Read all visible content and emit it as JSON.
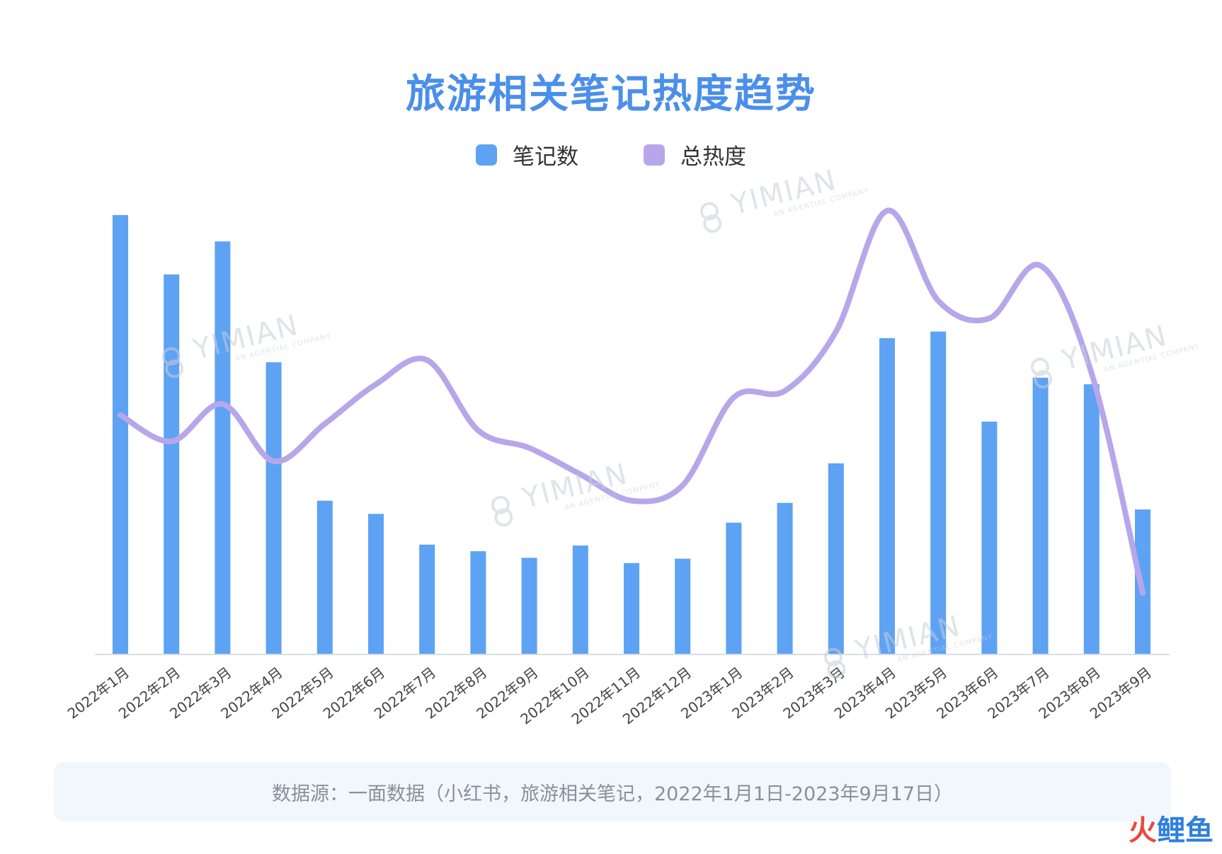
{
  "chart_data": {
    "type": "bar",
    "title": "旅游相关笔记热度趋势",
    "categories": [
      "2022年1月",
      "2022年2月",
      "2022年3月",
      "2022年4月",
      "2022年5月",
      "2022年6月",
      "2022年7月",
      "2022年8月",
      "2022年9月",
      "2022年10月",
      "2022年11月",
      "2022年12月",
      "2023年1月",
      "2023年2月",
      "2023年3月",
      "2023年4月",
      "2023年5月",
      "2023年6月",
      "2023年7月",
      "2023年8月",
      "2023年9月"
    ],
    "series": [
      {
        "name": "笔记数",
        "type": "bar",
        "color": "#5ea2f4",
        "values": [
          100,
          86.5,
          94,
          66.5,
          35,
          32,
          25,
          23.5,
          22,
          24.8,
          20.8,
          21.8,
          30,
          34.5,
          43.5,
          72,
          73.5,
          53,
          63,
          61.5,
          33
        ]
      },
      {
        "name": "总热度",
        "type": "line",
        "color": "#b8a6ea",
        "values": [
          54.5,
          48.5,
          57,
          44,
          52.5,
          61.5,
          67,
          51,
          47,
          41,
          35,
          38.5,
          58.5,
          60,
          73.5,
          101,
          80.5,
          76.5,
          88.5,
          64,
          14
        ]
      }
    ],
    "xlabel": "",
    "ylabel": "",
    "ylim": [
      0,
      105
    ],
    "grid": false,
    "legend": "top-center"
  },
  "legend": {
    "items": [
      "笔记数",
      "总热度"
    ]
  },
  "watermark": {
    "main": "YIMIAN",
    "sub": "AN AGENTIAL COMPANY"
  },
  "footer": {
    "source": "数据源：一面数据（小红书，旅游相关笔记，2022年1月1日-2023年9月17日）"
  },
  "brand": {
    "part1": "火",
    "part2": "鲤鱼"
  }
}
